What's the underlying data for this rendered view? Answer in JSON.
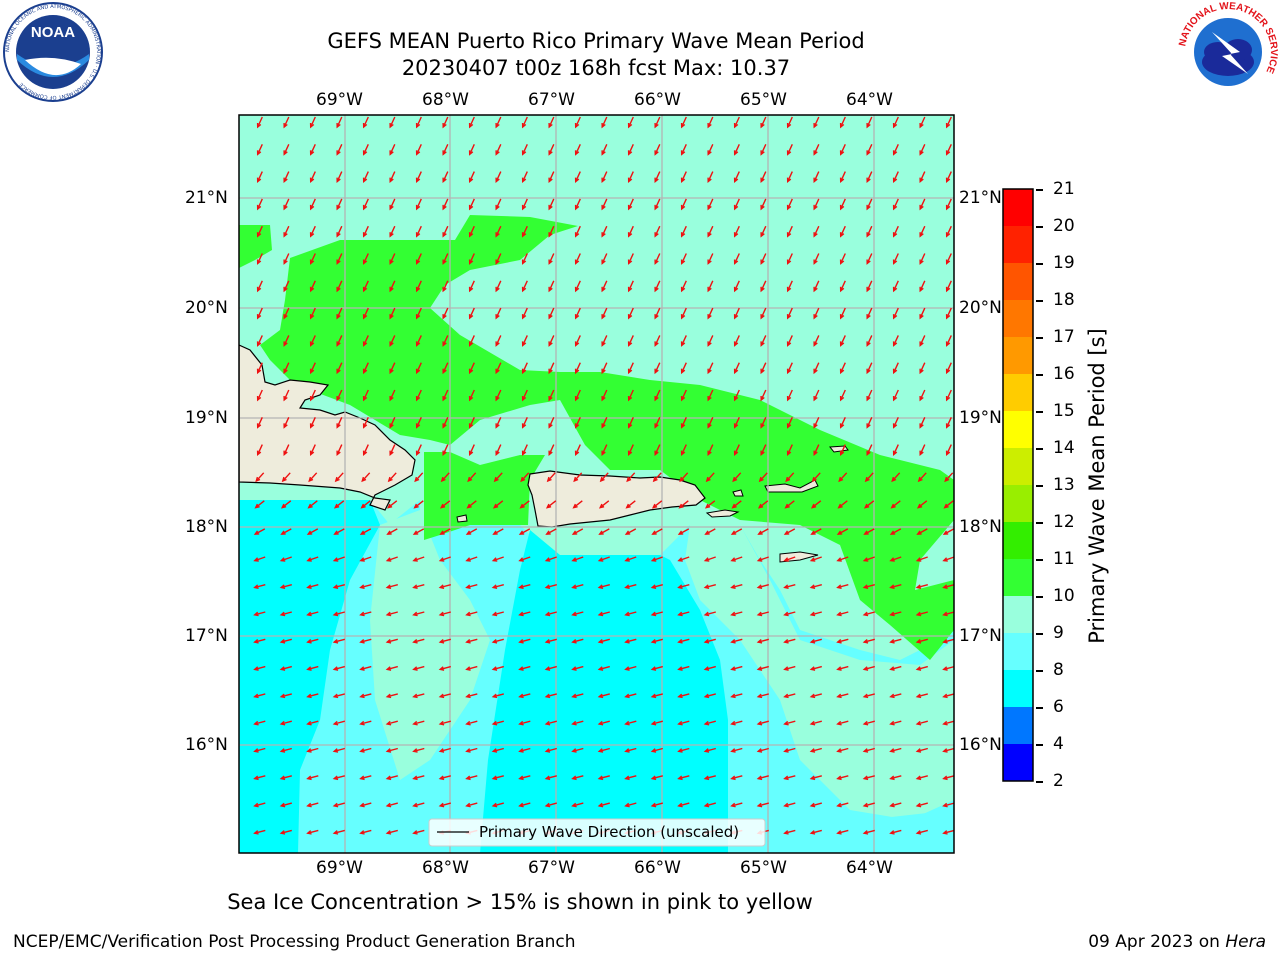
{
  "title": {
    "line1": "GEFS MEAN Puerto Rico Primary Wave Mean Period",
    "line2": "20230407 t00z 168h fcst   Max: 10.37"
  },
  "map": {
    "lon_labels": [
      "69°W",
      "68°W",
      "67°W",
      "66°W",
      "65°W",
      "64°W"
    ],
    "lat_labels": [
      "21°N",
      "20°N",
      "19°N",
      "18°N",
      "17°N",
      "16°N"
    ],
    "legend_label": "Primary Wave Direction (unscaled)",
    "vector_color": "#ee1111",
    "land_color": "#eeecdc"
  },
  "colorbar": {
    "label": "Primary Wave Mean Period [s]",
    "ticks": [
      "21",
      "20",
      "19",
      "18",
      "17",
      "16",
      "15",
      "14",
      "13",
      "12",
      "11",
      "10",
      "9",
      "8",
      "6",
      "4",
      "2"
    ],
    "colors": [
      "#ff0000",
      "#ff2200",
      "#ff5500",
      "#ff7700",
      "#ff9900",
      "#ffcc00",
      "#ffff00",
      "#ccee00",
      "#99ee00",
      "#33ee00",
      "#33ff33",
      "#99ffdd",
      "#66ffff",
      "#00ffff",
      "#0077ff",
      "#0000ff"
    ]
  },
  "caption": "Sea Ice Concentration > 15% is shown in pink to yellow",
  "footer": {
    "left": "NCEP/EMC/Verification Post Processing Product Generation Branch",
    "date": "09 Apr 2023 on ",
    "machine": "Hera"
  },
  "logos": {
    "noaa_text": "NOAA",
    "noaa_ring": "NATIONAL OCEANIC AND ATMOSPHERIC ADMINISTRATION · U.S. DEPARTMENT OF COMMERCE",
    "nws_ring": "NATIONAL WEATHER SERVICE"
  }
}
